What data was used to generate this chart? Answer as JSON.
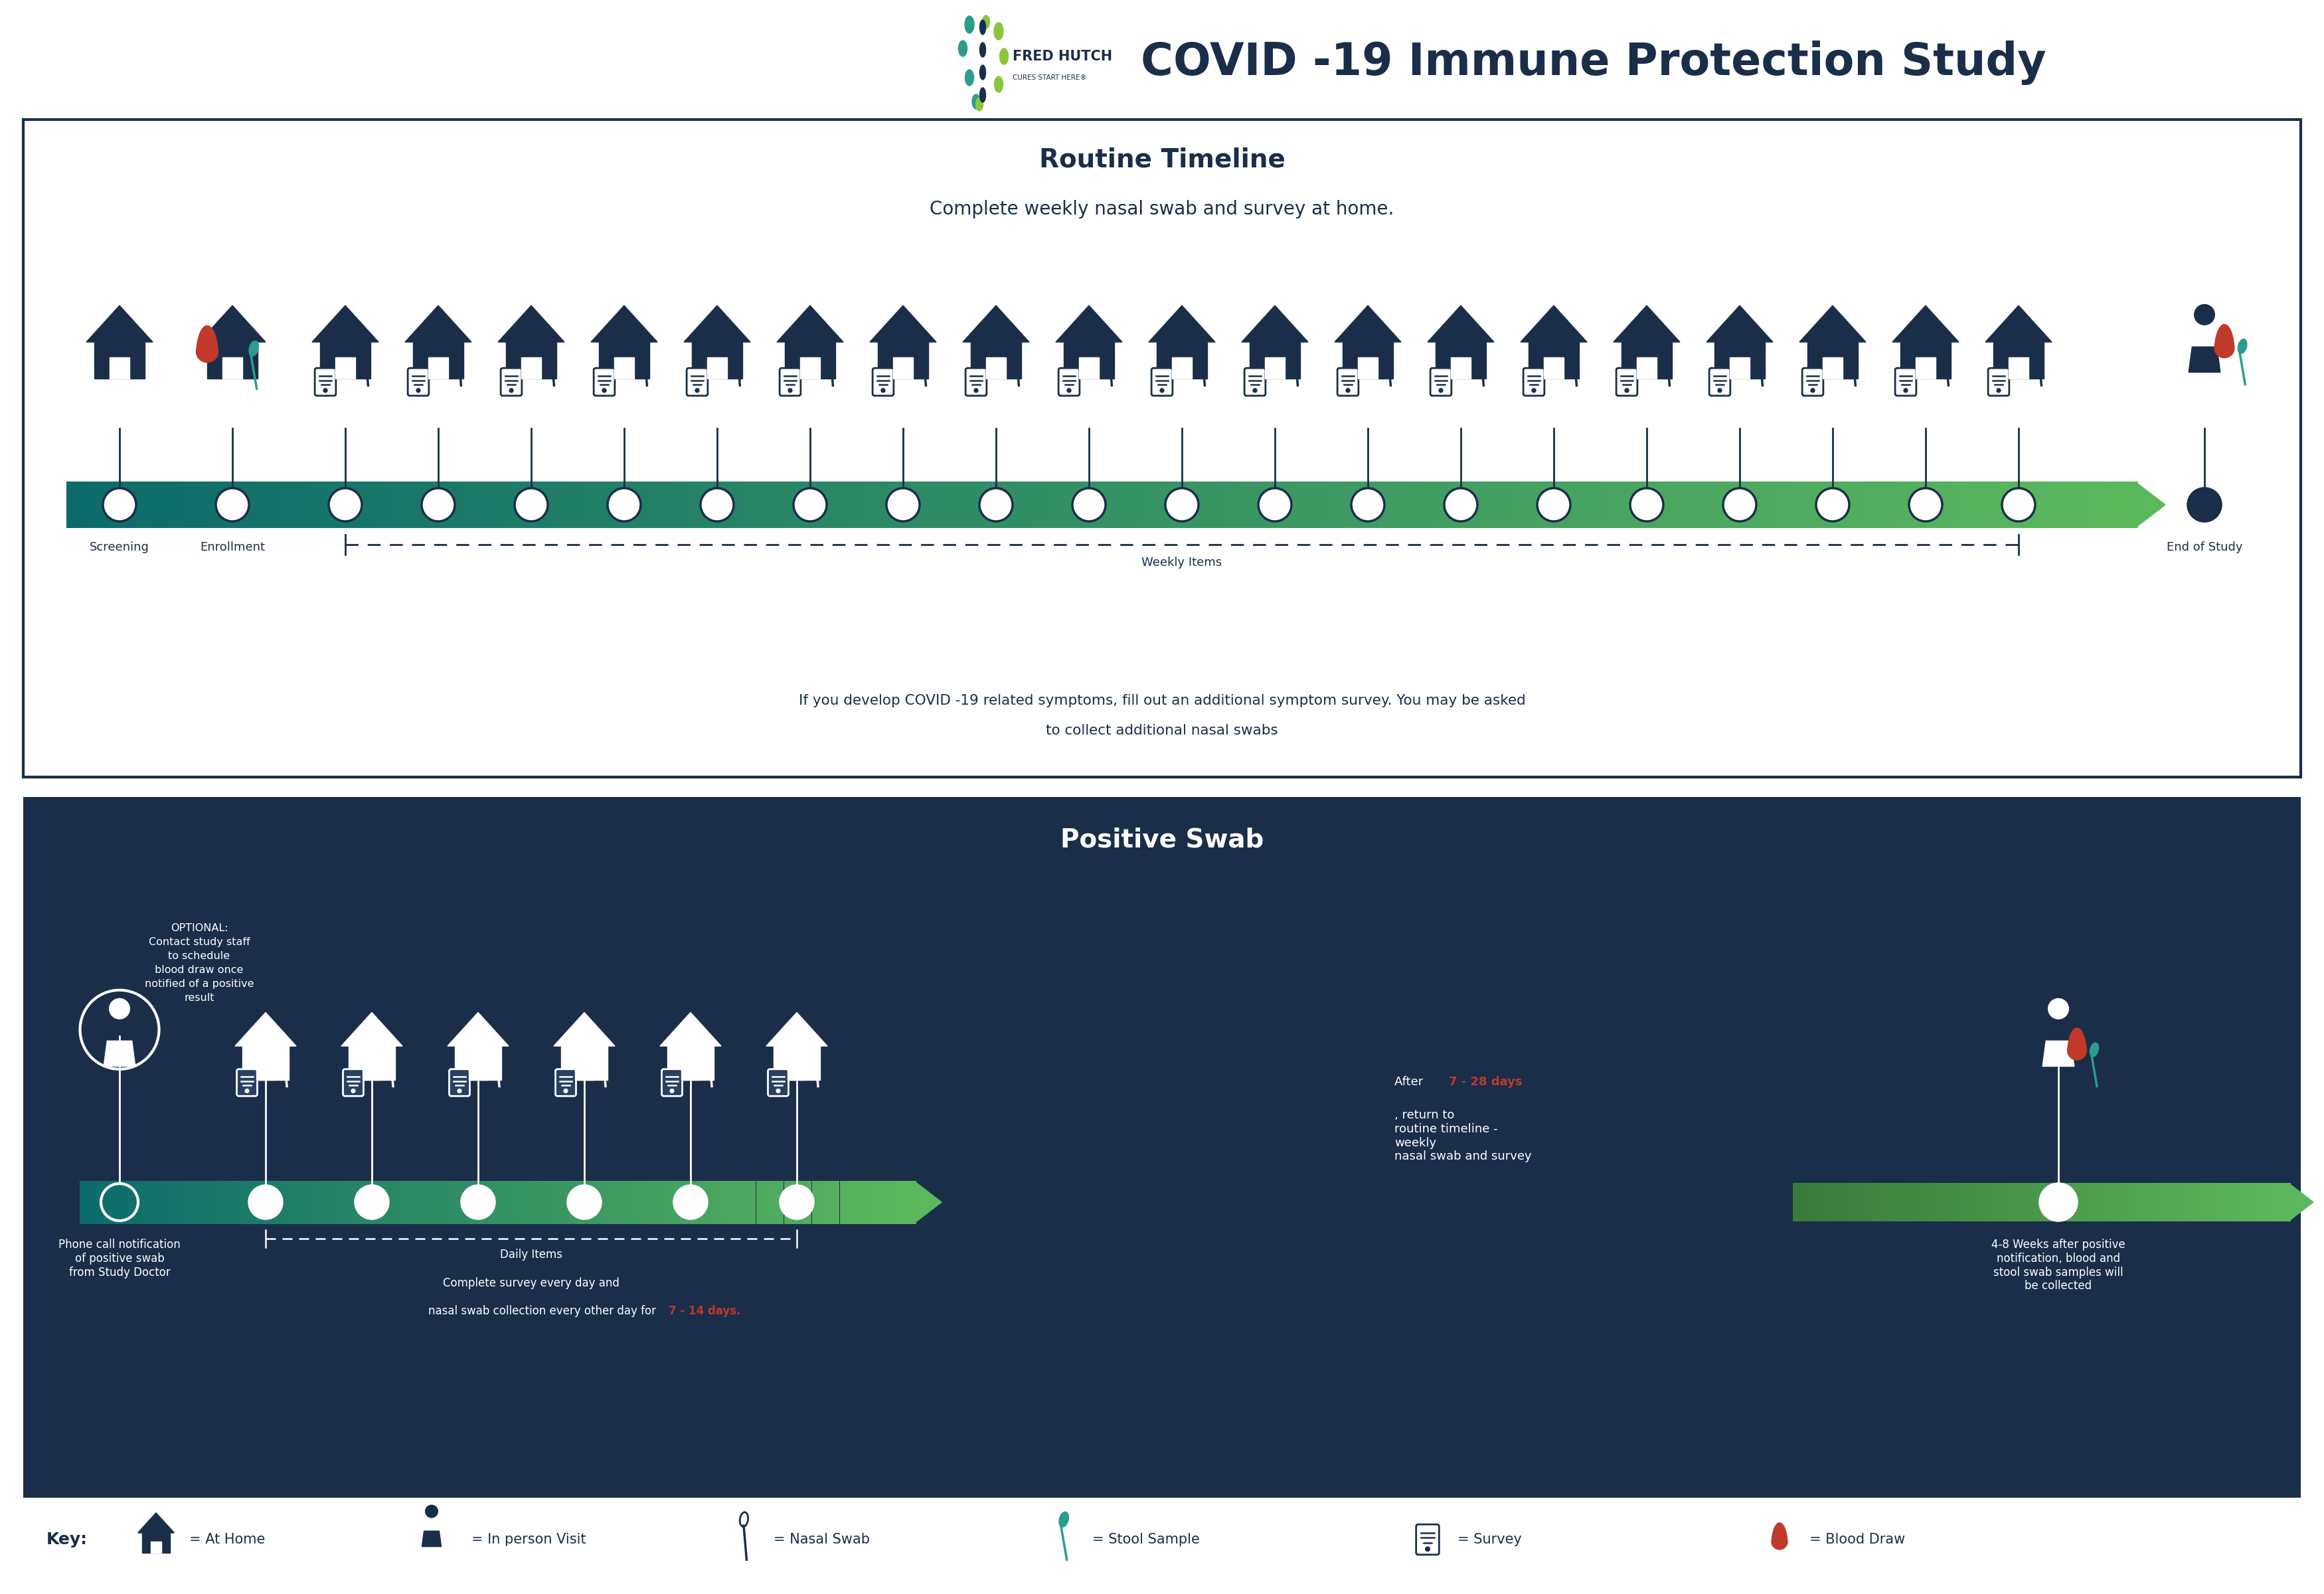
{
  "title": "COVID -19 Immune Protection Study",
  "title_color": "#1a2e4a",
  "title_fontsize": 48,
  "background_color": "#ffffff",
  "dark_navy": "#1a2e4a",
  "teal_dark": "#0d6b6b",
  "teal_mid": "#1a9090",
  "green_light": "#5cb85c",
  "red_color": "#c0392b",
  "teal_swab": "#2a9d8f",
  "routine_title": "Routine Timeline",
  "routine_subtitle": "Complete weekly nasal swab and survey at home.",
  "routine_note_line1": "If you develop COVID -19 related symptoms, fill out an additional symptom survey. You may be asked",
  "routine_note_line2": "to collect additional nasal swabs",
  "positive_title": "Positive Swab",
  "after_text1": "After ",
  "after_red": "7 - 28 days",
  "after_text2": ", return to\nroutine timeline -\nweekly\nnasal swab and survey",
  "end_pos_text": "4-8 Weeks after positive\nnotification, blood and\nstool swab samples will\nbe collected",
  "phone_text": "Phone call notification\nof positive swab\nfrom Study Doctor",
  "daily_note1": "Complete survey every day and",
  "daily_note2": "nasal swab collection every other day for ",
  "daily_note_red": "7 - 14 days.",
  "optional_text": "OPTIONAL:\nContact study staff\nto schedule\nblood draw once\nnotified of a positive\nresult",
  "fred_hutch": "FRED HUTCH",
  "cures": "CURES START HERE®"
}
